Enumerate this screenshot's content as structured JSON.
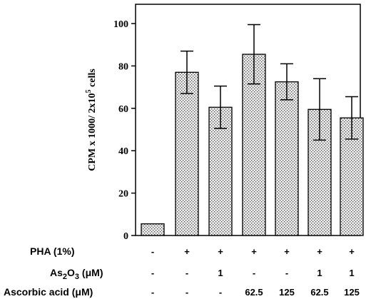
{
  "chart_data": {
    "type": "bar",
    "ylabel": "CPM x 1000/ 2x10^5 cells",
    "ylabel_parts": {
      "main": "CPM x 1000/ 2x10",
      "sup": "5",
      "tail": " cells"
    },
    "ylim": [
      0,
      110
    ],
    "yticks": [
      0,
      20,
      40,
      60,
      80,
      100
    ],
    "values": [
      5.5,
      77,
      60.5,
      85.5,
      72.5,
      59.5,
      55.5
    ],
    "errors": [
      0,
      10,
      10,
      14,
      8.5,
      14.5,
      10
    ],
    "grid": false,
    "conditions": [
      {
        "label": "PHA (1%)",
        "sub": "",
        "unit": "",
        "values": [
          "-",
          "+",
          "+",
          "+",
          "+",
          "+",
          "+"
        ]
      },
      {
        "label": "As",
        "sub": "2",
        "label_tail": "O",
        "sub2": "3",
        "unit": " (μM)",
        "values": [
          "-",
          "-",
          "1",
          "-",
          "-",
          "1",
          "1"
        ]
      },
      {
        "label": "Ascorbic acid",
        "sub": "",
        "unit": " (μM)",
        "values": [
          "-",
          "-",
          "-",
          "62.5",
          "125",
          "62.5",
          "125"
        ]
      }
    ]
  },
  "colors": {
    "bar_fill": "#e8e8e8",
    "dot": "#555555",
    "axis": "#000000"
  }
}
